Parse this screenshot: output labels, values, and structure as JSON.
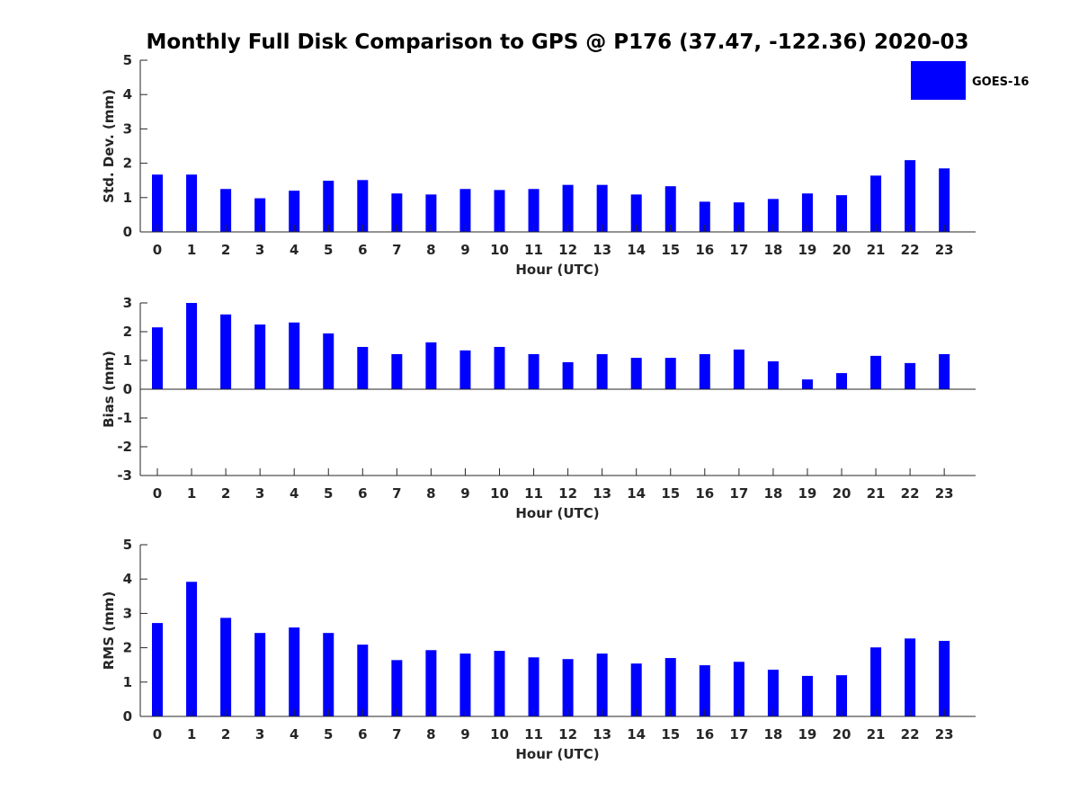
{
  "figure": {
    "title": "Monthly Full Disk Comparison to GPS @ P176 (37.47, -122.36) 2020-03",
    "legend": {
      "label": "GOES-16",
      "color": "#0000ff",
      "placement": "top-right"
    }
  },
  "chart_data": [
    {
      "type": "bar",
      "title": "",
      "xlabel": "Hour (UTC)",
      "ylabel": "Std. Dev. (mm)",
      "categories": [
        "0",
        "1",
        "2",
        "3",
        "4",
        "5",
        "6",
        "7",
        "8",
        "9",
        "10",
        "11",
        "12",
        "13",
        "14",
        "15",
        "16",
        "17",
        "18",
        "19",
        "20",
        "21",
        "22",
        "23"
      ],
      "ylim": [
        0,
        5
      ],
      "yticks": [
        0,
        1,
        2,
        3,
        4,
        5
      ],
      "grid": false,
      "series": [
        {
          "name": "GOES-16",
          "color": "#0000ff",
          "values": [
            1.67,
            1.67,
            1.25,
            0.98,
            1.2,
            1.49,
            1.51,
            1.12,
            1.09,
            1.25,
            1.22,
            1.25,
            1.37,
            1.37,
            1.09,
            1.33,
            0.88,
            0.86,
            0.96,
            1.12,
            1.07,
            1.64,
            2.09,
            1.85
          ]
        }
      ]
    },
    {
      "type": "bar",
      "title": "",
      "xlabel": "Hour (UTC)",
      "ylabel": "Bias (mm)",
      "categories": [
        "0",
        "1",
        "2",
        "3",
        "4",
        "5",
        "6",
        "7",
        "8",
        "9",
        "10",
        "11",
        "12",
        "13",
        "14",
        "15",
        "16",
        "17",
        "18",
        "19",
        "20",
        "21",
        "22",
        "23"
      ],
      "ylim": [
        -3,
        3
      ],
      "yticks": [
        -3,
        -2,
        -1,
        0,
        1,
        2,
        3
      ],
      "grid": false,
      "series": [
        {
          "name": "GOES-16",
          "color": "#0000ff",
          "values": [
            2.15,
            3.0,
            2.6,
            2.25,
            2.32,
            1.94,
            1.47,
            1.22,
            1.63,
            1.35,
            1.47,
            1.22,
            0.94,
            1.22,
            1.09,
            1.09,
            1.22,
            1.38,
            0.97,
            0.34,
            0.56,
            1.16,
            0.91,
            1.22
          ]
        }
      ]
    },
    {
      "type": "bar",
      "title": "",
      "xlabel": "Hour (UTC)",
      "ylabel": "RMS (mm)",
      "categories": [
        "0",
        "1",
        "2",
        "3",
        "4",
        "5",
        "6",
        "7",
        "8",
        "9",
        "10",
        "11",
        "12",
        "13",
        "14",
        "15",
        "16",
        "17",
        "18",
        "19",
        "20",
        "21",
        "22",
        "23"
      ],
      "ylim": [
        0,
        5
      ],
      "yticks": [
        0,
        1,
        2,
        3,
        4,
        5
      ],
      "grid": false,
      "series": [
        {
          "name": "GOES-16",
          "color": "#0000ff",
          "values": [
            2.72,
            3.92,
            2.87,
            2.43,
            2.59,
            2.43,
            2.09,
            1.64,
            1.93,
            1.83,
            1.91,
            1.72,
            1.67,
            1.83,
            1.54,
            1.7,
            1.49,
            1.59,
            1.36,
            1.18,
            1.2,
            2.01,
            2.27,
            2.2
          ]
        }
      ]
    }
  ]
}
